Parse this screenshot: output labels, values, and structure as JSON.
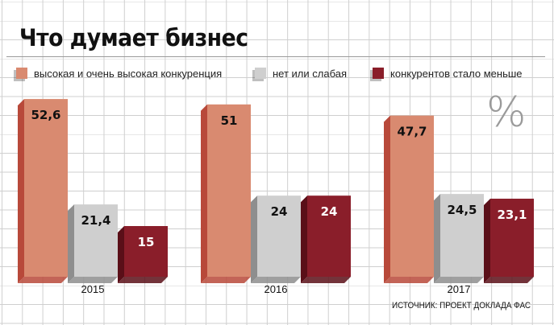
{
  "header": {
    "title": "Что думает бизнес"
  },
  "unit": "%",
  "source": "ИСТОЧНИК: ПРОЕКТ ДОКЛАДА ФАС",
  "colors": {
    "high": "#d98a70",
    "high_side": "#b8493a",
    "none": "#cfcfcf",
    "none_side": "#8e8e8e",
    "less": "#8a1e2a",
    "less_side": "#5a0f18"
  },
  "chart_data": {
    "type": "bar",
    "categories": [
      "2015",
      "2016",
      "2017"
    ],
    "series": [
      {
        "name": "высокая и очень высокая конкуренция",
        "values": [
          52.6,
          51,
          47.7
        ],
        "labels": [
          "52,6",
          "51",
          "47,7"
        ],
        "color": "#d98a70"
      },
      {
        "name": "нет или слабая",
        "values": [
          21.4,
          24,
          24.5
        ],
        "labels": [
          "21,4",
          "24",
          "24,5"
        ],
        "color": "#cfcfcf"
      },
      {
        "name": "конкурентов стало меньше",
        "values": [
          15,
          24,
          23.1
        ],
        "labels": [
          "15",
          "24",
          "23,1"
        ],
        "color": "#8a1e2a"
      }
    ],
    "ylim": [
      0,
      60
    ],
    "legend": "top",
    "grid": true
  }
}
